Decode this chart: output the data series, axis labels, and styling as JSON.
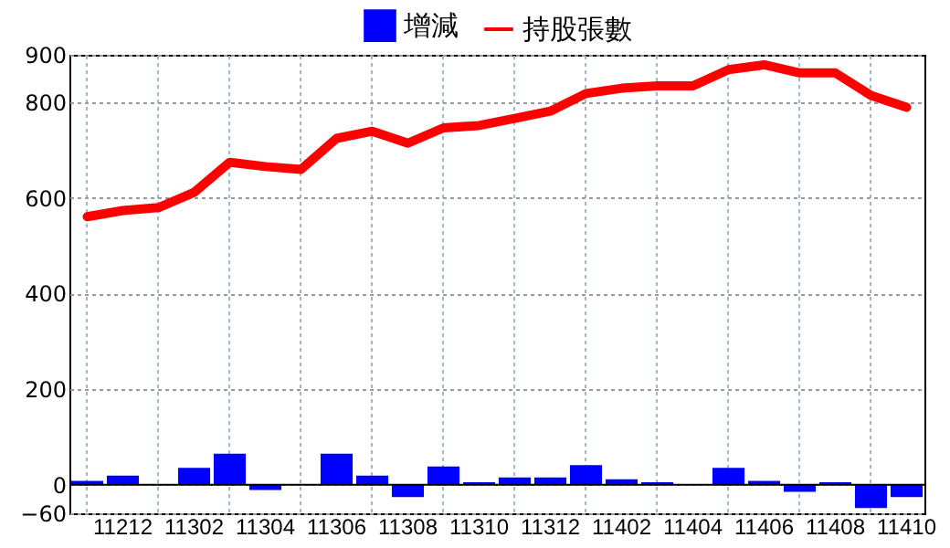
{
  "chart_data": {
    "type": "bar",
    "categories": [
      null,
      "11212",
      null,
      "11302",
      null,
      "11304",
      null,
      "11306",
      null,
      "11308",
      null,
      "11310",
      null,
      "11312",
      null,
      "11402",
      null,
      "11404",
      null,
      "11406",
      null,
      "11408",
      null,
      "11410"
    ],
    "series": [
      {
        "name": "增減",
        "color": "#0000ff",
        "values": [
          8,
          19,
          0,
          35,
          65,
          -11,
          0,
          65,
          19,
          -26,
          38,
          5,
          15,
          15,
          41,
          11,
          5,
          0,
          35,
          8,
          -15,
          5,
          -49,
          -26
        ]
      },
      {
        "name": "持股張數",
        "type": "line",
        "color": "#ff0000",
        "values": [
          561,
          574,
          580,
          612,
          675,
          666,
          660,
          725,
          740,
          715,
          747,
          752,
          767,
          782,
          819,
          830,
          835,
          835,
          869,
          879,
          862,
          862,
          815,
          790
        ]
      }
    ],
    "ylim": [
      -60,
      900
    ],
    "yticks": [
      -60,
      0,
      200,
      400,
      600,
      800,
      900
    ],
    "ref_lines": [
      {
        "axis": "y",
        "value": 0,
        "color": "#000000"
      }
    ],
    "grid": true,
    "legend": "top"
  }
}
